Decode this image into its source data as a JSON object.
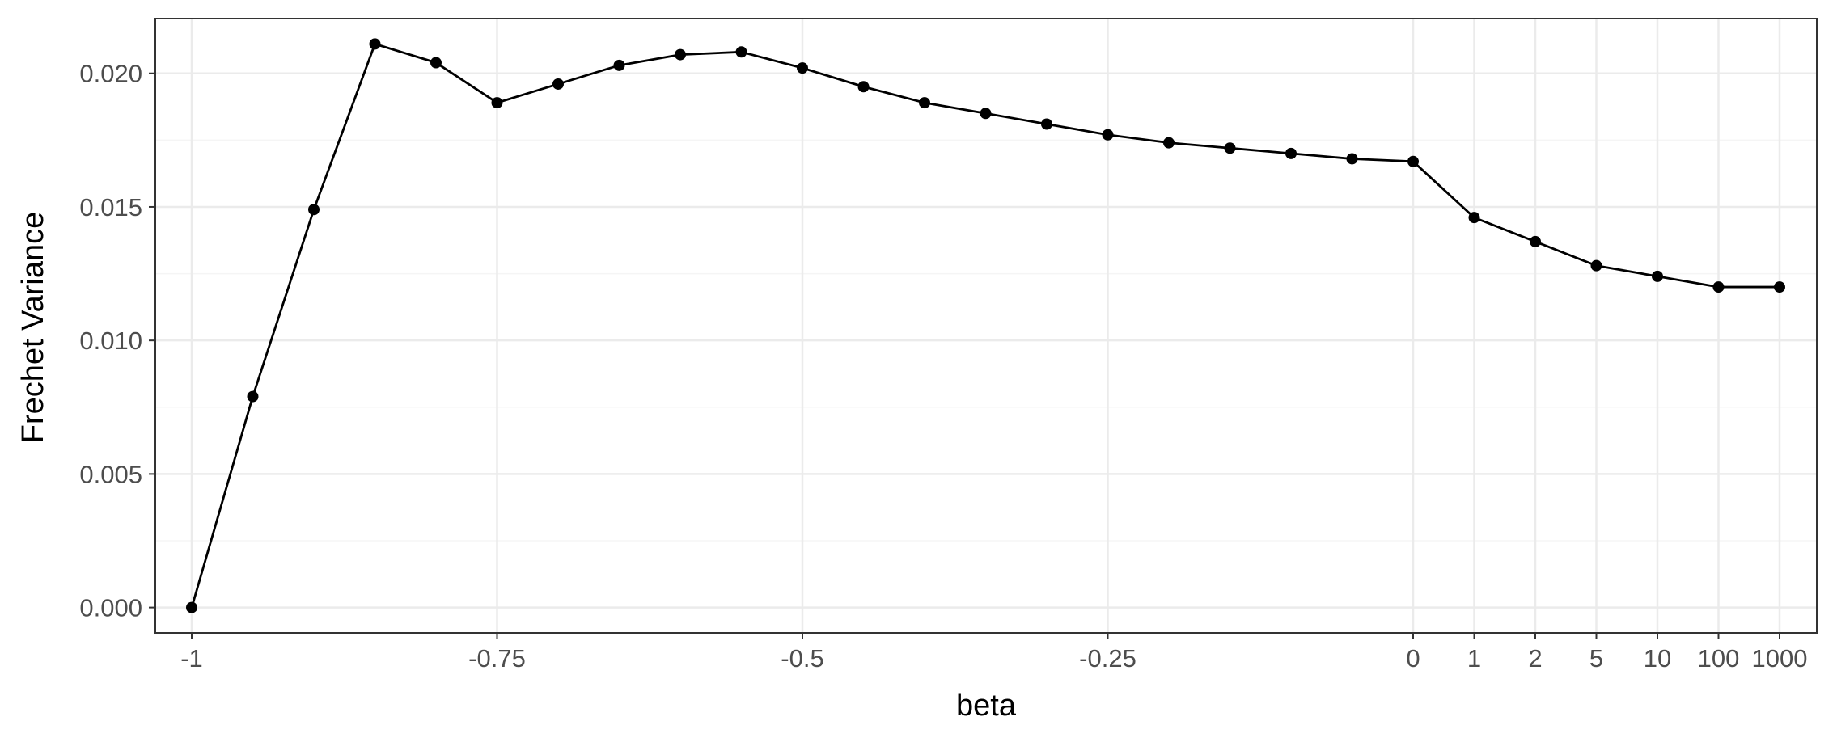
{
  "chart_data": {
    "type": "line",
    "title": "",
    "xlabel": "beta",
    "ylabel": "Frechet Variance",
    "x_scale": "categorical",
    "categories": [
      "-1",
      "-0.95",
      "-0.9",
      "-0.85",
      "-0.8",
      "-0.75",
      "-0.7",
      "-0.65",
      "-0.6",
      "-0.55",
      "-0.5",
      "-0.45",
      "-0.4",
      "-0.35",
      "-0.3",
      "-0.25",
      "-0.2",
      "-0.15",
      "-0.1",
      "-0.05",
      "0",
      "1",
      "2",
      "5",
      "10",
      "100",
      "1000"
    ],
    "x_tick_labels": [
      "-1",
      "-0.75",
      "-0.5",
      "-0.25",
      "0",
      "1",
      "2",
      "5",
      "10",
      "100",
      "1000"
    ],
    "x_tick_categories": [
      "-1",
      "-0.75",
      "-0.5",
      "-0.25",
      "0",
      "1",
      "2",
      "5",
      "10",
      "100",
      "1000"
    ],
    "y_ticks": [
      0.0,
      0.005,
      0.01,
      0.015,
      0.02
    ],
    "y_tick_labels": [
      "0.000",
      "0.005",
      "0.010",
      "0.015",
      "0.020"
    ],
    "ylim": [
      -0.00095,
      0.02205
    ],
    "grid": true,
    "legend": "none",
    "series": [
      {
        "values": [
          0.0,
          0.0079,
          0.0149,
          0.0211,
          0.0204,
          0.0189,
          0.0196,
          0.0203,
          0.0207,
          0.0208,
          0.0202,
          0.0195,
          0.0189,
          0.0185,
          0.0181,
          0.0177,
          0.0174,
          0.0172,
          0.017,
          0.0168,
          0.0167,
          0.0146,
          0.0137,
          0.0128,
          0.0124,
          0.012,
          0.012
        ],
        "color": "#000000"
      }
    ],
    "colors": {
      "line": "#000000",
      "panel_border": "#333333",
      "grid_major": "#ebebeb",
      "grid_minor": "#f5f5f5",
      "tick_text": "#4d4d4d",
      "axis_title": "#000000",
      "background": "#ffffff"
    }
  }
}
